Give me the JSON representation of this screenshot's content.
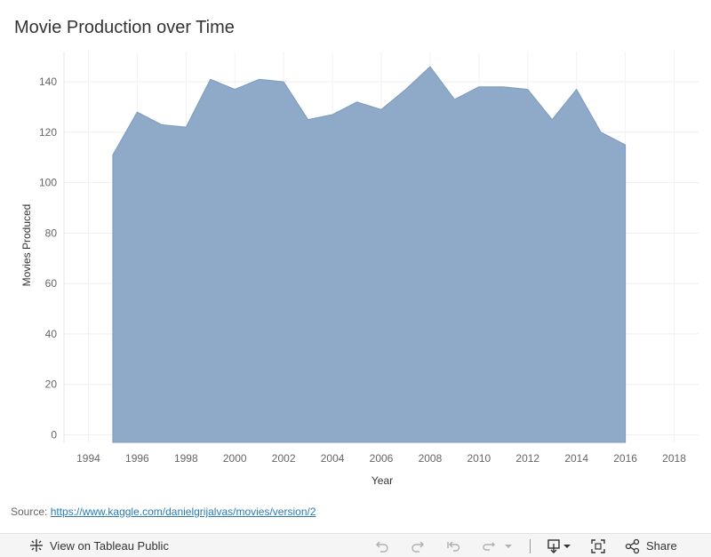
{
  "chart_title": "Movie Production over Time",
  "source": {
    "label": "Source: ",
    "link_text": "https://www.kaggle.com/danielgrijalvas/movies/version/2"
  },
  "toolbar": {
    "view_label": "View on Tableau Public",
    "share_label": "Share",
    "icons": [
      "tableau-logo-icon",
      "undo-icon",
      "redo-icon",
      "revert-icon",
      "refresh-icon",
      "dropdown-icon",
      "download-icon",
      "fullscreen-icon",
      "share-icon"
    ]
  },
  "colors": {
    "area_fill": "#8fa9c8",
    "area_stroke": "#7d9bbf",
    "link": "#2a7bb5"
  },
  "chart_data": {
    "type": "area",
    "title": "Movie Production over Time",
    "xlabel": "Year",
    "ylabel": "Movies Produced",
    "xlim": [
      1993,
      2019
    ],
    "ylim": [
      -3,
      152
    ],
    "x_ticks": [
      1994,
      1996,
      1998,
      2000,
      2002,
      2004,
      2006,
      2008,
      2010,
      2012,
      2014,
      2016,
      2018
    ],
    "y_ticks": [
      0,
      20,
      40,
      60,
      80,
      100,
      120,
      140
    ],
    "grid": true,
    "x": [
      1995,
      1996,
      1997,
      1998,
      1999,
      2000,
      2001,
      2002,
      2003,
      2004,
      2005,
      2006,
      2007,
      2008,
      2009,
      2010,
      2011,
      2012,
      2013,
      2014,
      2015,
      2016
    ],
    "values": [
      111,
      128,
      123,
      122,
      141,
      137,
      141,
      140,
      125,
      127,
      132,
      129,
      137,
      146,
      133,
      138,
      138,
      137,
      125,
      137,
      120,
      115
    ]
  }
}
